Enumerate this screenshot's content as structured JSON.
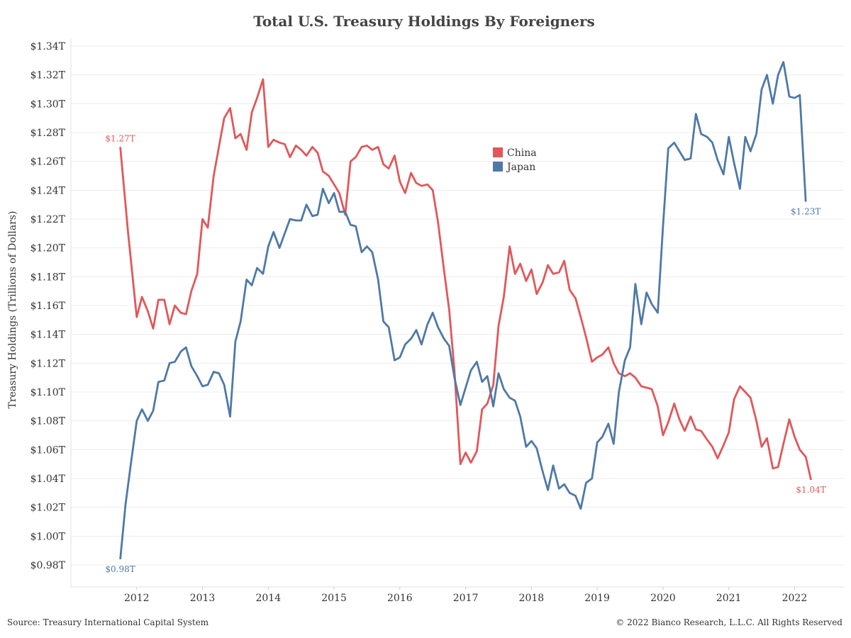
{
  "chart_data": {
    "type": "line",
    "title": "Total U.S. Treasury Holdings By Foreigners",
    "ylabel": "Treasury Holdings (Trillions of Dollars)",
    "xlabel": "",
    "ylim": [
      0.98,
      1.34
    ],
    "xlim": [
      2011.0,
      2022.75
    ],
    "grid": "horizontal",
    "legend_position": "center-top",
    "y_ticks": [
      0.98,
      1.0,
      1.02,
      1.04,
      1.06,
      1.08,
      1.1,
      1.12,
      1.14,
      1.16,
      1.18,
      1.2,
      1.22,
      1.24,
      1.26,
      1.28,
      1.3,
      1.32,
      1.34
    ],
    "y_tick_labels": [
      "$0.98T",
      "$1.00T",
      "$1.02T",
      "$1.04T",
      "$1.06T",
      "$1.08T",
      "$1.10T",
      "$1.12T",
      "$1.14T",
      "$1.16T",
      "$1.18T",
      "$1.20T",
      "$1.22T",
      "$1.24T",
      "$1.26T",
      "$1.28T",
      "$1.30T",
      "$1.32T",
      "$1.34T"
    ],
    "x_ticks": [
      2012,
      2013,
      2014,
      2015,
      2016,
      2017,
      2018,
      2019,
      2020,
      2021,
      2022
    ],
    "x_tick_labels": [
      "2012",
      "2013",
      "2014",
      "2015",
      "2016",
      "2017",
      "2018",
      "2019",
      "2020",
      "2021",
      "2022"
    ],
    "series": [
      {
        "name": "China",
        "color": "#e15759",
        "end_labels": {
          "start": "$1.27T",
          "end": "$1.04T"
        },
        "points": [
          [
            2011.75,
            1.27
          ],
          [
            2011.87,
            1.21
          ],
          [
            2012.0,
            1.152
          ],
          [
            2012.08,
            1.166
          ],
          [
            2012.17,
            1.156
          ],
          [
            2012.25,
            1.144
          ],
          [
            2012.33,
            1.164
          ],
          [
            2012.42,
            1.164
          ],
          [
            2012.5,
            1.147
          ],
          [
            2012.58,
            1.16
          ],
          [
            2012.67,
            1.155
          ],
          [
            2012.75,
            1.154
          ],
          [
            2012.83,
            1.17
          ],
          [
            2012.92,
            1.182
          ],
          [
            2013.0,
            1.22
          ],
          [
            2013.08,
            1.214
          ],
          [
            2013.17,
            1.25
          ],
          [
            2013.25,
            1.27
          ],
          [
            2013.33,
            1.29
          ],
          [
            2013.42,
            1.297
          ],
          [
            2013.5,
            1.276
          ],
          [
            2013.58,
            1.279
          ],
          [
            2013.67,
            1.268
          ],
          [
            2013.75,
            1.294
          ],
          [
            2013.83,
            1.304
          ],
          [
            2013.92,
            1.317
          ],
          [
            2014.0,
            1.27
          ],
          [
            2014.08,
            1.275
          ],
          [
            2014.17,
            1.273
          ],
          [
            2014.25,
            1.272
          ],
          [
            2014.33,
            1.263
          ],
          [
            2014.42,
            1.271
          ],
          [
            2014.5,
            1.268
          ],
          [
            2014.58,
            1.264
          ],
          [
            2014.67,
            1.27
          ],
          [
            2014.75,
            1.266
          ],
          [
            2014.83,
            1.253
          ],
          [
            2014.92,
            1.25
          ],
          [
            2015.0,
            1.244
          ],
          [
            2015.08,
            1.238
          ],
          [
            2015.17,
            1.223
          ],
          [
            2015.25,
            1.26
          ],
          [
            2015.33,
            1.263
          ],
          [
            2015.42,
            1.27
          ],
          [
            2015.5,
            1.271
          ],
          [
            2015.58,
            1.268
          ],
          [
            2015.67,
            1.27
          ],
          [
            2015.75,
            1.258
          ],
          [
            2015.83,
            1.255
          ],
          [
            2015.92,
            1.264
          ],
          [
            2016.0,
            1.246
          ],
          [
            2016.08,
            1.238
          ],
          [
            2016.17,
            1.252
          ],
          [
            2016.25,
            1.245
          ],
          [
            2016.33,
            1.243
          ],
          [
            2016.42,
            1.244
          ],
          [
            2016.5,
            1.24
          ],
          [
            2016.58,
            1.218
          ],
          [
            2016.67,
            1.185
          ],
          [
            2016.75,
            1.157
          ],
          [
            2016.83,
            1.115
          ],
          [
            2016.92,
            1.05
          ],
          [
            2017.0,
            1.058
          ],
          [
            2017.08,
            1.051
          ],
          [
            2017.17,
            1.059
          ],
          [
            2017.25,
            1.088
          ],
          [
            2017.33,
            1.092
          ],
          [
            2017.42,
            1.105
          ],
          [
            2017.5,
            1.146
          ],
          [
            2017.58,
            1.166
          ],
          [
            2017.67,
            1.201
          ],
          [
            2017.75,
            1.182
          ],
          [
            2017.83,
            1.189
          ],
          [
            2017.92,
            1.177
          ],
          [
            2018.0,
            1.185
          ],
          [
            2018.08,
            1.168
          ],
          [
            2018.17,
            1.176
          ],
          [
            2018.25,
            1.188
          ],
          [
            2018.33,
            1.182
          ],
          [
            2018.42,
            1.183
          ],
          [
            2018.5,
            1.191
          ],
          [
            2018.58,
            1.171
          ],
          [
            2018.67,
            1.165
          ],
          [
            2018.75,
            1.152
          ],
          [
            2018.83,
            1.138
          ],
          [
            2018.92,
            1.121
          ],
          [
            2019.0,
            1.124
          ],
          [
            2019.08,
            1.126
          ],
          [
            2019.17,
            1.131
          ],
          [
            2019.25,
            1.12
          ],
          [
            2019.33,
            1.113
          ],
          [
            2019.42,
            1.111
          ],
          [
            2019.5,
            1.113
          ],
          [
            2019.58,
            1.11
          ],
          [
            2019.67,
            1.104
          ],
          [
            2019.75,
            1.103
          ],
          [
            2019.83,
            1.102
          ],
          [
            2019.92,
            1.09
          ],
          [
            2020.0,
            1.07
          ],
          [
            2020.08,
            1.079
          ],
          [
            2020.17,
            1.092
          ],
          [
            2020.25,
            1.081
          ],
          [
            2020.33,
            1.073
          ],
          [
            2020.42,
            1.083
          ],
          [
            2020.5,
            1.074
          ],
          [
            2020.58,
            1.073
          ],
          [
            2020.67,
            1.067
          ],
          [
            2020.75,
            1.062
          ],
          [
            2020.83,
            1.054
          ],
          [
            2020.92,
            1.063
          ],
          [
            2021.0,
            1.072
          ],
          [
            2021.08,
            1.095
          ],
          [
            2021.17,
            1.104
          ],
          [
            2021.25,
            1.1
          ],
          [
            2021.33,
            1.096
          ],
          [
            2021.42,
            1.08
          ],
          [
            2021.5,
            1.062
          ],
          [
            2021.58,
            1.068
          ],
          [
            2021.67,
            1.047
          ],
          [
            2021.75,
            1.048
          ],
          [
            2021.83,
            1.064
          ],
          [
            2021.92,
            1.081
          ],
          [
            2022.0,
            1.069
          ],
          [
            2022.08,
            1.06
          ],
          [
            2022.17,
            1.055
          ],
          [
            2022.25,
            1.039
          ]
        ]
      },
      {
        "name": "Japan",
        "color": "#4e79a7",
        "end_labels": {
          "start": "$0.98T",
          "end": "$1.23T"
        },
        "points": [
          [
            2011.75,
            0.984
          ],
          [
            2011.83,
            1.022
          ],
          [
            2011.92,
            1.053
          ],
          [
            2012.0,
            1.08
          ],
          [
            2012.08,
            1.088
          ],
          [
            2012.17,
            1.08
          ],
          [
            2012.25,
            1.087
          ],
          [
            2012.33,
            1.107
          ],
          [
            2012.42,
            1.108
          ],
          [
            2012.5,
            1.12
          ],
          [
            2012.58,
            1.121
          ],
          [
            2012.67,
            1.128
          ],
          [
            2012.75,
            1.131
          ],
          [
            2012.83,
            1.118
          ],
          [
            2012.92,
            1.111
          ],
          [
            2013.0,
            1.104
          ],
          [
            2013.08,
            1.105
          ],
          [
            2013.17,
            1.114
          ],
          [
            2013.25,
            1.113
          ],
          [
            2013.33,
            1.105
          ],
          [
            2013.42,
            1.083
          ],
          [
            2013.5,
            1.135
          ],
          [
            2013.58,
            1.149
          ],
          [
            2013.67,
            1.178
          ],
          [
            2013.75,
            1.174
          ],
          [
            2013.83,
            1.186
          ],
          [
            2013.92,
            1.182
          ],
          [
            2014.0,
            1.201
          ],
          [
            2014.08,
            1.211
          ],
          [
            2014.17,
            1.2
          ],
          [
            2014.25,
            1.21
          ],
          [
            2014.33,
            1.22
          ],
          [
            2014.42,
            1.219
          ],
          [
            2014.5,
            1.219
          ],
          [
            2014.58,
            1.23
          ],
          [
            2014.67,
            1.222
          ],
          [
            2014.75,
            1.223
          ],
          [
            2014.83,
            1.241
          ],
          [
            2014.92,
            1.231
          ],
          [
            2015.0,
            1.238
          ],
          [
            2015.08,
            1.225
          ],
          [
            2015.17,
            1.225
          ],
          [
            2015.25,
            1.216
          ],
          [
            2015.33,
            1.215
          ],
          [
            2015.42,
            1.197
          ],
          [
            2015.5,
            1.201
          ],
          [
            2015.58,
            1.197
          ],
          [
            2015.67,
            1.178
          ],
          [
            2015.75,
            1.149
          ],
          [
            2015.83,
            1.145
          ],
          [
            2015.92,
            1.122
          ],
          [
            2016.0,
            1.124
          ],
          [
            2016.08,
            1.133
          ],
          [
            2016.17,
            1.137
          ],
          [
            2016.25,
            1.143
          ],
          [
            2016.33,
            1.133
          ],
          [
            2016.42,
            1.147
          ],
          [
            2016.5,
            1.155
          ],
          [
            2016.58,
            1.145
          ],
          [
            2016.67,
            1.137
          ],
          [
            2016.75,
            1.132
          ],
          [
            2016.83,
            1.11
          ],
          [
            2016.92,
            1.091
          ],
          [
            2017.0,
            1.103
          ],
          [
            2017.08,
            1.115
          ],
          [
            2017.17,
            1.121
          ],
          [
            2017.25,
            1.107
          ],
          [
            2017.33,
            1.111
          ],
          [
            2017.42,
            1.09
          ],
          [
            2017.5,
            1.113
          ],
          [
            2017.58,
            1.102
          ],
          [
            2017.67,
            1.096
          ],
          [
            2017.75,
            1.094
          ],
          [
            2017.83,
            1.083
          ],
          [
            2017.92,
            1.062
          ],
          [
            2018.0,
            1.066
          ],
          [
            2018.08,
            1.061
          ],
          [
            2018.17,
            1.045
          ],
          [
            2018.25,
            1.032
          ],
          [
            2018.33,
            1.049
          ],
          [
            2018.42,
            1.033
          ],
          [
            2018.5,
            1.036
          ],
          [
            2018.58,
            1.03
          ],
          [
            2018.67,
            1.028
          ],
          [
            2018.75,
            1.019
          ],
          [
            2018.83,
            1.037
          ],
          [
            2018.92,
            1.04
          ],
          [
            2019.0,
            1.065
          ],
          [
            2019.08,
            1.069
          ],
          [
            2019.17,
            1.078
          ],
          [
            2019.25,
            1.064
          ],
          [
            2019.33,
            1.1
          ],
          [
            2019.42,
            1.122
          ],
          [
            2019.5,
            1.131
          ],
          [
            2019.58,
            1.175
          ],
          [
            2019.67,
            1.147
          ],
          [
            2019.75,
            1.169
          ],
          [
            2019.83,
            1.161
          ],
          [
            2019.92,
            1.155
          ],
          [
            2020.0,
            1.215
          ],
          [
            2020.08,
            1.269
          ],
          [
            2020.17,
            1.273
          ],
          [
            2020.25,
            1.267
          ],
          [
            2020.33,
            1.261
          ],
          [
            2020.42,
            1.262
          ],
          [
            2020.5,
            1.293
          ],
          [
            2020.58,
            1.279
          ],
          [
            2020.67,
            1.277
          ],
          [
            2020.75,
            1.273
          ],
          [
            2020.83,
            1.261
          ],
          [
            2020.92,
            1.251
          ],
          [
            2021.0,
            1.277
          ],
          [
            2021.08,
            1.259
          ],
          [
            2021.17,
            1.241
          ],
          [
            2021.25,
            1.277
          ],
          [
            2021.33,
            1.267
          ],
          [
            2021.42,
            1.279
          ],
          [
            2021.5,
            1.31
          ],
          [
            2021.58,
            1.32
          ],
          [
            2021.67,
            1.3
          ],
          [
            2021.75,
            1.32
          ],
          [
            2021.83,
            1.329
          ],
          [
            2021.92,
            1.305
          ],
          [
            2022.0,
            1.304
          ],
          [
            2022.08,
            1.306
          ],
          [
            2022.17,
            1.232
          ]
        ]
      }
    ]
  },
  "footer": {
    "source": "Source: Treasury International Capital System",
    "copyright": "© 2022 Bianco Research, L.L.C. All Rights Reserved"
  }
}
